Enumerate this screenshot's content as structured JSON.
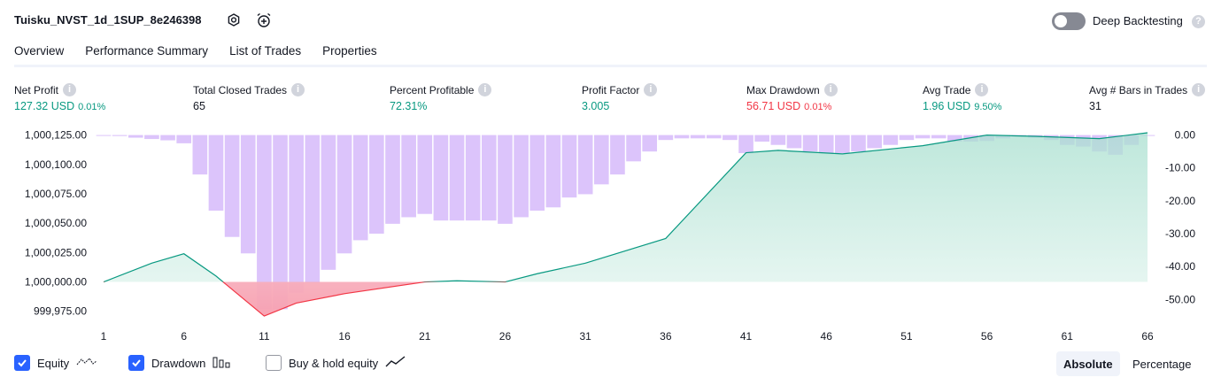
{
  "header": {
    "title": "Tuisku_NVST_1d_1SUP_8e246398",
    "deep_backtesting_label": "Deep Backtesting",
    "deep_backtesting_on": false
  },
  "tabs": [
    {
      "label": "Overview",
      "active": true
    },
    {
      "label": "Performance Summary",
      "active": false
    },
    {
      "label": "List of Trades",
      "active": false
    },
    {
      "label": "Properties",
      "active": false
    }
  ],
  "metrics": {
    "net_profit": {
      "label": "Net Profit",
      "value": "127.32 USD",
      "pct": "0.01%"
    },
    "total_closed_trades": {
      "label": "Total Closed Trades",
      "value": "65"
    },
    "percent_profitable": {
      "label": "Percent Profitable",
      "value": "72.31%"
    },
    "profit_factor": {
      "label": "Profit Factor",
      "value": "3.005"
    },
    "max_drawdown": {
      "label": "Max Drawdown",
      "value": "56.71 USD",
      "pct": "0.01%"
    },
    "avg_trade": {
      "label": "Avg Trade",
      "value": "1.96 USD",
      "pct": "9.50%"
    },
    "avg_bars": {
      "label": "Avg # Bars in Trades",
      "value": "31"
    }
  },
  "legend": {
    "equity_label": "Equity",
    "drawdown_label": "Drawdown",
    "buy_hold_label": "Buy & hold equity",
    "equity_checked": true,
    "drawdown_checked": true,
    "buy_hold_checked": false
  },
  "scale_toggle": {
    "absolute_label": "Absolute",
    "percentage_label": "Percentage",
    "selected": "Absolute"
  },
  "colors": {
    "accent": "#2962ff",
    "profit": "#089981",
    "loss": "#f23645",
    "drawdown_bar": "#dcc4fb",
    "equity_fill": "#d3efe7"
  },
  "chart_data": {
    "type": "area",
    "x_ticks": [
      1,
      6,
      11,
      16,
      21,
      26,
      31,
      36,
      41,
      46,
      51,
      56,
      61,
      66
    ],
    "left_axis": {
      "ticks": [
        1000125,
        1000100,
        1000075,
        1000050,
        1000025,
        1000000,
        999975
      ],
      "tick_labels": [
        "1,000,125.00",
        "1,000,100.00",
        "1,000,075.00",
        "1,000,050.00",
        "1,000,025.00",
        "1,000,000.00",
        "999,975.00"
      ],
      "range": [
        999965,
        1000127
      ]
    },
    "right_axis": {
      "ticks": [
        0,
        -10,
        -20,
        -30,
        -40,
        -50
      ],
      "tick_labels": [
        "0.00",
        "-10.00",
        "-20.00",
        "-30.00",
        "-40.00",
        "-50.00"
      ],
      "range": [
        -57.2,
        0.7
      ]
    },
    "baseline": 1000000,
    "series": [
      {
        "name": "Equity",
        "axis": "left",
        "x": [
          1,
          4,
          6,
          8,
          11,
          13,
          16,
          21,
          23,
          26,
          28,
          31,
          36,
          41,
          43,
          47,
          52,
          56,
          59,
          63,
          66
        ],
        "values": [
          1000000,
          1000016,
          1000024,
          1000005,
          999971,
          999982,
          999990,
          1000000,
          1000001,
          1000000,
          1000007,
          1000016,
          1000037,
          1000110,
          1000112,
          1000109,
          1000116,
          1000125,
          1000124,
          1000122,
          1000127
        ]
      },
      {
        "name": "Drawdown",
        "axis": "right",
        "x": [
          1,
          2,
          3,
          4,
          5,
          6,
          7,
          8,
          9,
          10,
          11,
          12,
          13,
          14,
          15,
          16,
          17,
          18,
          19,
          20,
          21,
          22,
          23,
          24,
          25,
          26,
          27,
          28,
          29,
          30,
          31,
          32,
          33,
          34,
          35,
          36,
          37,
          38,
          39,
          40,
          41,
          42,
          43,
          44,
          45,
          46,
          47,
          48,
          49,
          50,
          51,
          52,
          53,
          54,
          55,
          56,
          57,
          58,
          59,
          60,
          61,
          62,
          63,
          64,
          65,
          66
        ],
        "values": [
          0,
          -0.3,
          -0.8,
          -1.2,
          -1.6,
          -2.5,
          -12,
          -23,
          -31,
          -36,
          -53,
          -53,
          -48,
          -45,
          -41,
          -36,
          -32,
          -30,
          -27,
          -25,
          -24,
          -26,
          -26,
          -26,
          -26,
          -27,
          -25,
          -23,
          -22,
          -19,
          -18,
          -15,
          -12,
          -8,
          -5,
          -1.5,
          -1,
          -1,
          -1,
          -1.5,
          -5.5,
          -2,
          -3,
          -4,
          -5,
          -5.5,
          -5.5,
          -5,
          -4,
          -3,
          -1.5,
          -1,
          -1,
          -2,
          -2,
          -1.8,
          -1,
          -0.5,
          -0.8,
          -1.5,
          -3,
          -3.5,
          -5,
          -6,
          -3,
          0
        ]
      }
    ]
  }
}
